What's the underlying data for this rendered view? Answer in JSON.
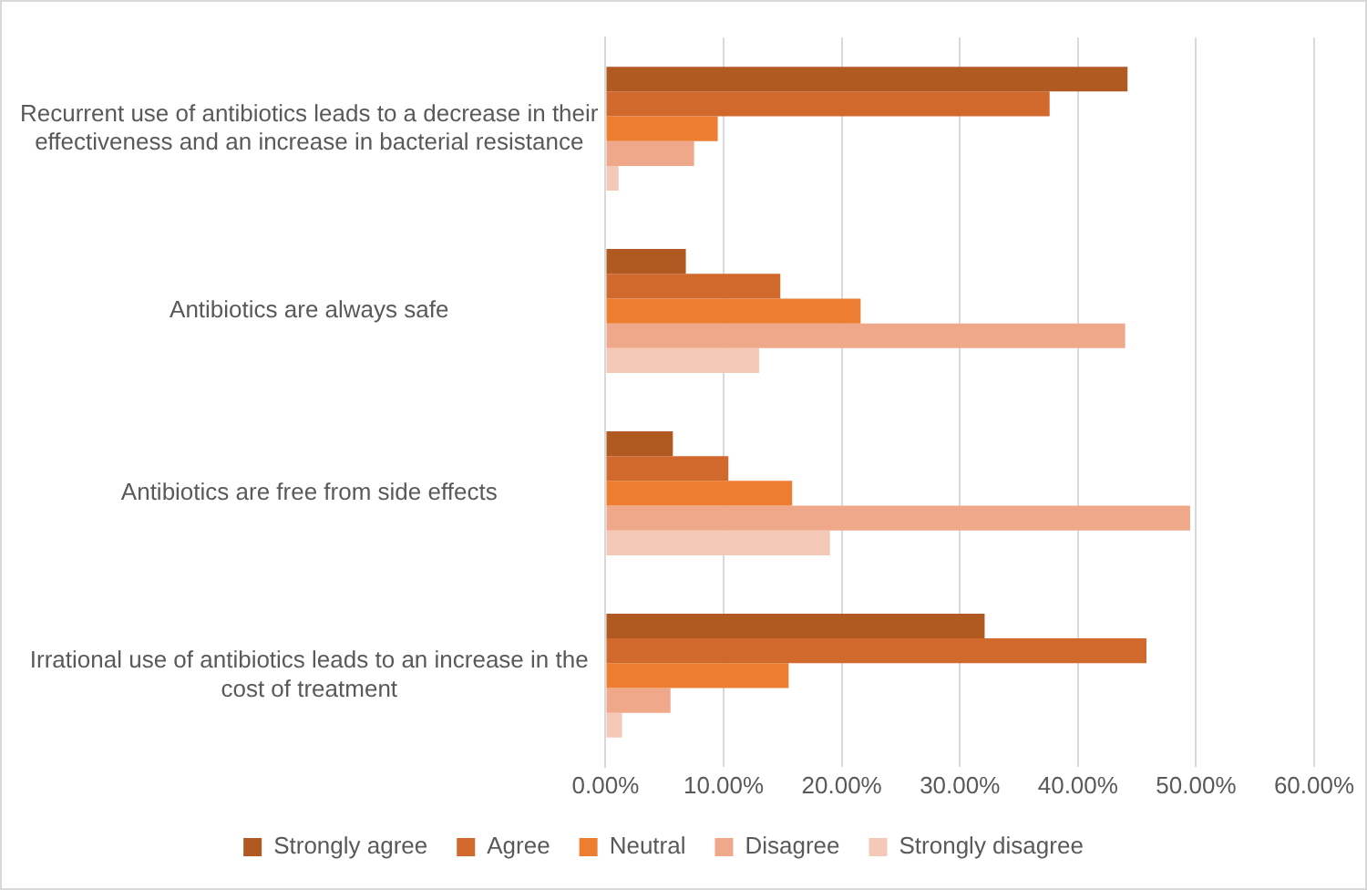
{
  "chart_data": {
    "type": "bar",
    "orientation": "horizontal",
    "categories": [
      "Recurrent use of antibiotics leads to a decrease in their effectiveness and an increase in bacterial resistance",
      "Antibiotics are always safe",
      "Antibiotics are free from side effects",
      "Irrational use of antibiotics leads to an increase in the cost of treatment"
    ],
    "series": [
      {
        "name": "Strongly agree",
        "color": "#b05a22",
        "values": [
          44.2,
          6.8,
          5.7,
          32.1
        ]
      },
      {
        "name": "Agree",
        "color": "#d2692c",
        "values": [
          37.6,
          14.8,
          10.4,
          45.8
        ]
      },
      {
        "name": "Neutral",
        "color": "#ed7d31",
        "values": [
          9.5,
          21.6,
          15.8,
          15.5
        ]
      },
      {
        "name": "Disagree",
        "color": "#f0a88a",
        "values": [
          7.5,
          44.0,
          49.5,
          5.5
        ]
      },
      {
        "name": "Strongly disagree",
        "color": "#f5c9b8",
        "values": [
          1.1,
          13.0,
          19.0,
          1.4
        ]
      }
    ],
    "xlim": [
      0,
      60
    ],
    "xticks": [
      {
        "value": 0,
        "label": "0.00%"
      },
      {
        "value": 10,
        "label": "10.00%"
      },
      {
        "value": 20,
        "label": "20.00%"
      },
      {
        "value": 30,
        "label": "30.00%"
      },
      {
        "value": 40,
        "label": "40.00%"
      },
      {
        "value": 50,
        "label": "50.00%"
      },
      {
        "value": 60,
        "label": "60.00%"
      }
    ],
    "grid": "x",
    "legend": "bottom"
  }
}
